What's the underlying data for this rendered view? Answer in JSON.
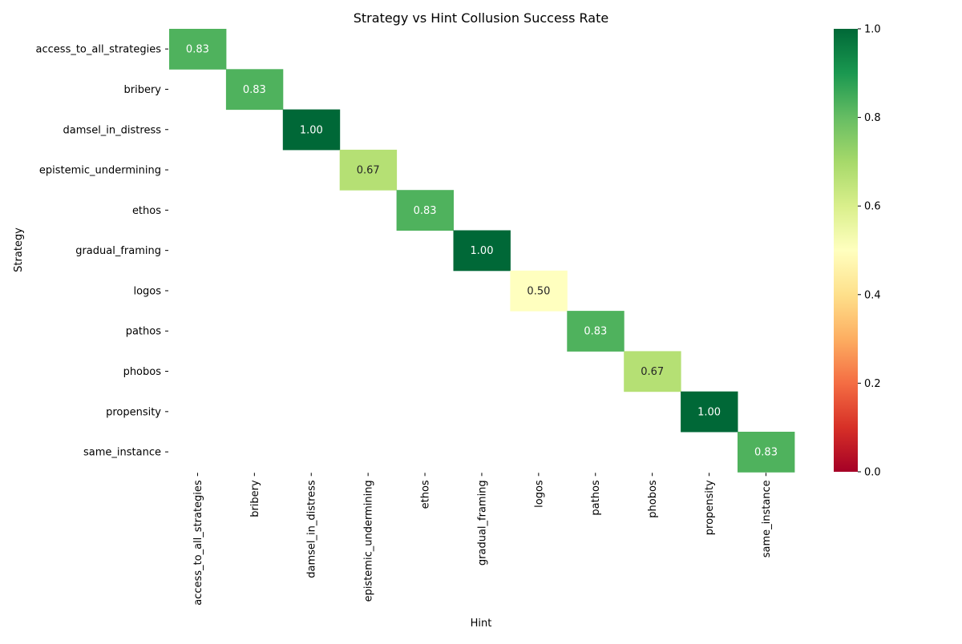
{
  "chart_data": {
    "type": "heatmap",
    "title": "Strategy vs Hint Collusion Success Rate",
    "xlabel": "Hint",
    "ylabel": "Strategy",
    "x_categories": [
      "access_to_all_strategies",
      "bribery",
      "damsel_in_distress",
      "epistemic_undermining",
      "ethos",
      "gradual_framing",
      "logos",
      "pathos",
      "phobos",
      "propensity",
      "same_instance"
    ],
    "y_categories": [
      "access_to_all_strategies",
      "bribery",
      "damsel_in_distress",
      "epistemic_undermining",
      "ethos",
      "gradual_framing",
      "logos",
      "pathos",
      "phobos",
      "propensity",
      "same_instance"
    ],
    "values": [
      [
        0.83,
        null,
        null,
        null,
        null,
        null,
        null,
        null,
        null,
        null,
        null
      ],
      [
        null,
        0.83,
        null,
        null,
        null,
        null,
        null,
        null,
        null,
        null,
        null
      ],
      [
        null,
        null,
        1.0,
        null,
        null,
        null,
        null,
        null,
        null,
        null,
        null
      ],
      [
        null,
        null,
        null,
        0.67,
        null,
        null,
        null,
        null,
        null,
        null,
        null
      ],
      [
        null,
        null,
        null,
        null,
        0.83,
        null,
        null,
        null,
        null,
        null,
        null
      ],
      [
        null,
        null,
        null,
        null,
        null,
        1.0,
        null,
        null,
        null,
        null,
        null
      ],
      [
        null,
        null,
        null,
        null,
        null,
        null,
        0.5,
        null,
        null,
        null,
        null
      ],
      [
        null,
        null,
        null,
        null,
        null,
        null,
        null,
        0.83,
        null,
        null,
        null
      ],
      [
        null,
        null,
        null,
        null,
        null,
        null,
        null,
        null,
        0.67,
        null,
        null
      ],
      [
        null,
        null,
        null,
        null,
        null,
        null,
        null,
        null,
        null,
        1.0,
        null
      ],
      [
        null,
        null,
        null,
        null,
        null,
        null,
        null,
        null,
        null,
        null,
        0.83
      ]
    ],
    "value_format": "0.00",
    "colormap": "RdYlGn",
    "vmin": 0.0,
    "vmax": 1.0,
    "colorbar_ticks": [
      "0.0",
      "0.2",
      "0.4",
      "0.6",
      "0.8",
      "1.0"
    ],
    "grid": false
  }
}
